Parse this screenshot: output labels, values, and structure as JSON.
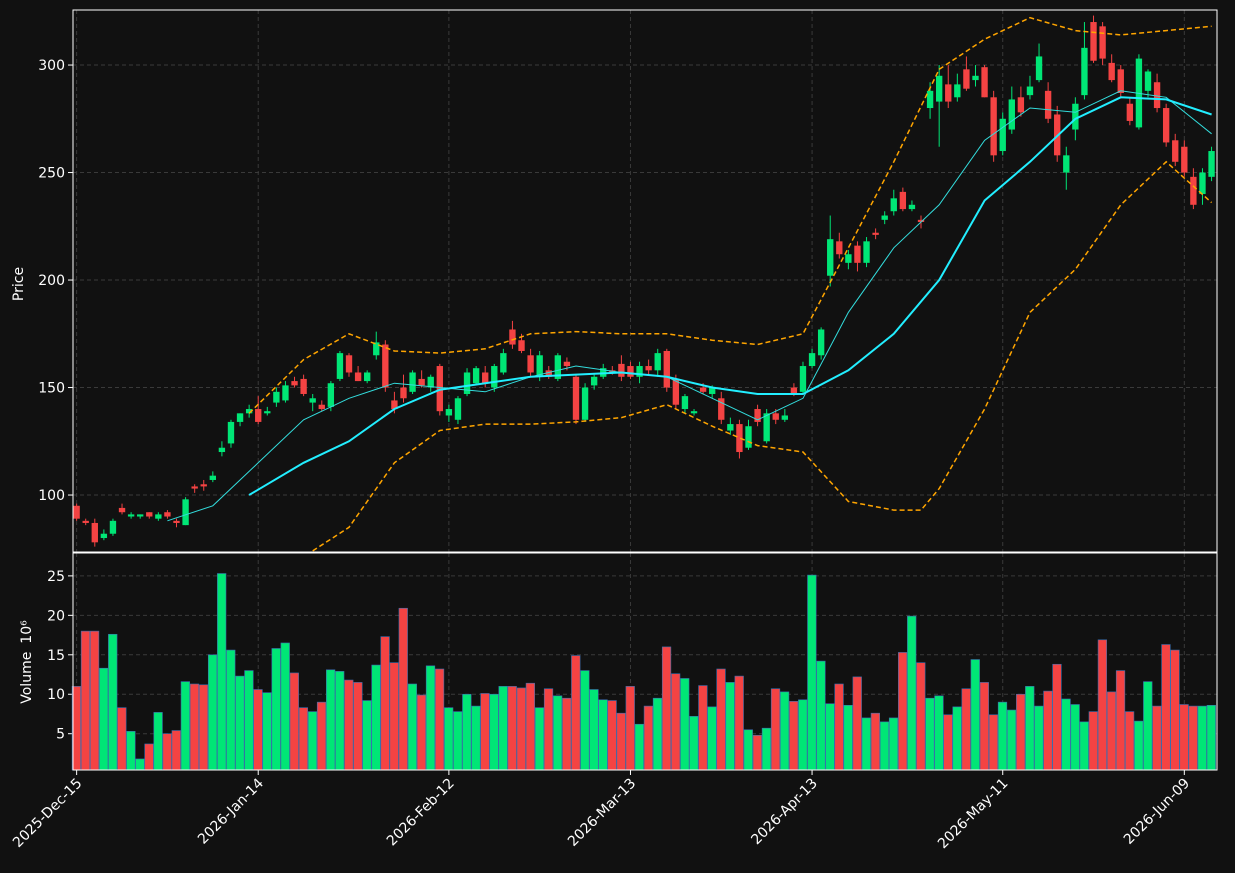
{
  "chart_data": {
    "type": "candlestick",
    "ylabel": "Price",
    "volume_ylabel": "Volume",
    "volume_unit": "10⁶",
    "up_color": "#00e676",
    "down_color": "#f44343",
    "grid": true,
    "ylim": [
      73.5,
      325.6
    ],
    "yticks": [
      100,
      150,
      200,
      250,
      300
    ],
    "volume_ylim": [
      0.4,
      27.9
    ],
    "volume_yticks": [
      5,
      10,
      15,
      20,
      25
    ],
    "xlim": [
      -0.4,
      125.6
    ],
    "xticks": [
      {
        "value": 0,
        "label": "2025-Dec-15"
      },
      {
        "value": 20,
        "label": "2026-Jan-14"
      },
      {
        "value": 41,
        "label": "2026-Feb-12"
      },
      {
        "value": 61,
        "label": "2026-Mar-13"
      },
      {
        "value": 81,
        "label": "2026-Apr-13"
      },
      {
        "value": 102,
        "label": "2026-May-11"
      },
      {
        "value": 122,
        "label": "2026-Jun-09"
      }
    ],
    "ohlc": [
      [
        95,
        96,
        88,
        89
      ],
      [
        88,
        89,
        86,
        87
      ],
      [
        87,
        89,
        76,
        78
      ],
      [
        80,
        84,
        79,
        82
      ],
      [
        82,
        89,
        81,
        88
      ],
      [
        94,
        96,
        91,
        92
      ],
      [
        90,
        92,
        89,
        91
      ],
      [
        90,
        91,
        89,
        91
      ],
      [
        92,
        92,
        89,
        90
      ],
      [
        89,
        92,
        88,
        91
      ],
      [
        92,
        93,
        89,
        90
      ],
      [
        88,
        89,
        85,
        87
      ],
      [
        86,
        99,
        86,
        98
      ],
      [
        104,
        105,
        101,
        103
      ],
      [
        105,
        107,
        102,
        104
      ],
      [
        107,
        111,
        106,
        109
      ],
      [
        120,
        125,
        118,
        122
      ],
      [
        124,
        135,
        122,
        134
      ],
      [
        134,
        138,
        132,
        138
      ],
      [
        138,
        142,
        136,
        140
      ],
      [
        140,
        146,
        133,
        134
      ],
      [
        138,
        141,
        137,
        139
      ],
      [
        143,
        150,
        141,
        148
      ],
      [
        144,
        153,
        143,
        151
      ],
      [
        153,
        155,
        150,
        151
      ],
      [
        154,
        156,
        146,
        147
      ],
      [
        143,
        147,
        139,
        145
      ],
      [
        142,
        144,
        139,
        140
      ],
      [
        141,
        153,
        139,
        152
      ],
      [
        154,
        167,
        153,
        166
      ],
      [
        165,
        166,
        155,
        157
      ],
      [
        157,
        160,
        153,
        153
      ],
      [
        153,
        158,
        152,
        157
      ],
      [
        165,
        176,
        163,
        171
      ],
      [
        170,
        172,
        148,
        150
      ],
      [
        144,
        148,
        138,
        140
      ],
      [
        150,
        156,
        143,
        145
      ],
      [
        148,
        158,
        147,
        157
      ],
      [
        154,
        158,
        150,
        151
      ],
      [
        150,
        156,
        148,
        155
      ],
      [
        160,
        161,
        137,
        139
      ],
      [
        137,
        142,
        134,
        140
      ],
      [
        135,
        146,
        133,
        145
      ],
      [
        147,
        159,
        146,
        157
      ],
      [
        152,
        160,
        151,
        159
      ],
      [
        157,
        160,
        150,
        152
      ],
      [
        150,
        161,
        148,
        160
      ],
      [
        157,
        168,
        156,
        166
      ],
      [
        177,
        181,
        168,
        170
      ],
      [
        172,
        175,
        166,
        167
      ],
      [
        165,
        168,
        155,
        157
      ],
      [
        155,
        167,
        153,
        165
      ],
      [
        158,
        160,
        154,
        155
      ],
      [
        154,
        166,
        153,
        165
      ],
      [
        162,
        164,
        158,
        160
      ],
      [
        155,
        156,
        133,
        135
      ],
      [
        135,
        152,
        134,
        150
      ],
      [
        151,
        156,
        149,
        155
      ],
      [
        155,
        161,
        154,
        159
      ],
      [
        158,
        160,
        156,
        157
      ],
      [
        161,
        165,
        153,
        155
      ],
      [
        160,
        162,
        154,
        155
      ],
      [
        155,
        162,
        152,
        160
      ],
      [
        160,
        163,
        156,
        158
      ],
      [
        158,
        168,
        155,
        166
      ],
      [
        167,
        168,
        148,
        150
      ],
      [
        154,
        156,
        140,
        142
      ],
      [
        140,
        147,
        138,
        146
      ],
      [
        138,
        140,
        137,
        139
      ],
      [
        150,
        152,
        147,
        148
      ],
      [
        147,
        151,
        145,
        150
      ],
      [
        145,
        148,
        133,
        135
      ],
      [
        130,
        136,
        128,
        133
      ],
      [
        133,
        135,
        117,
        120
      ],
      [
        122,
        135,
        121,
        132
      ],
      [
        140,
        142,
        132,
        134
      ],
      [
        125,
        140,
        124,
        138
      ],
      [
        138,
        140,
        133,
        135
      ],
      [
        135,
        140,
        134,
        137
      ],
      [
        150,
        152,
        146,
        147
      ],
      [
        148,
        162,
        147,
        160
      ],
      [
        160,
        168,
        159,
        166
      ],
      [
        165,
        178,
        163,
        177
      ],
      [
        202,
        230,
        197,
        219
      ],
      [
        218,
        222,
        210,
        212
      ],
      [
        208,
        214,
        205,
        212
      ],
      [
        216,
        218,
        204,
        208
      ],
      [
        208,
        220,
        206,
        218
      ],
      [
        222,
        224,
        219,
        221
      ],
      [
        228,
        232,
        226,
        230
      ],
      [
        232,
        242,
        230,
        238
      ],
      [
        241,
        243,
        232,
        233
      ],
      [
        233,
        237,
        232,
        235
      ],
      [
        228,
        230,
        224,
        227
      ],
      [
        280,
        292,
        275,
        288
      ],
      [
        283,
        300,
        262,
        295
      ],
      [
        291,
        300,
        280,
        283
      ],
      [
        285,
        296,
        283,
        291
      ],
      [
        298,
        304,
        288,
        289
      ],
      [
        293,
        300,
        290,
        295
      ],
      [
        299,
        300,
        285,
        285
      ],
      [
        285,
        288,
        255,
        258
      ],
      [
        260,
        278,
        258,
        275
      ],
      [
        270,
        290,
        268,
        284
      ],
      [
        285,
        290,
        276,
        278
      ],
      [
        286,
        295,
        284,
        290
      ],
      [
        293,
        310,
        292,
        304
      ],
      [
        288,
        292,
        273,
        275
      ],
      [
        277,
        281,
        255,
        258
      ],
      [
        250,
        262,
        242,
        258
      ],
      [
        270,
        285,
        265,
        282
      ],
      [
        286,
        320,
        284,
        308
      ],
      [
        320,
        323,
        301,
        302
      ],
      [
        318,
        320,
        300,
        303
      ],
      [
        301,
        305,
        292,
        293
      ],
      [
        298,
        300,
        285,
        287
      ],
      [
        282,
        285,
        272,
        274
      ],
      [
        271,
        305,
        270,
        303
      ],
      [
        288,
        298,
        285,
        297
      ],
      [
        292,
        296,
        278,
        280
      ],
      [
        280,
        282,
        262,
        264
      ],
      [
        265,
        268,
        253,
        255
      ],
      [
        262,
        265,
        248,
        250
      ],
      [
        248,
        252,
        233,
        235
      ],
      [
        240,
        252,
        235,
        250
      ],
      [
        248,
        262,
        246,
        260
      ]
    ],
    "volume": [
      11,
      18,
      18,
      13.3,
      17.6,
      8.3,
      5.3,
      1.8,
      3.7,
      7.7,
      5,
      5.4,
      11.6,
      11.3,
      11.2,
      15,
      25.3,
      15.6,
      12.3,
      13,
      10.6,
      10.2,
      15.8,
      16.5,
      12.7,
      8.3,
      7.8,
      9,
      13.1,
      12.9,
      11.8,
      11.5,
      9.2,
      13.7,
      17.3,
      14,
      20.9,
      11.3,
      9.9,
      13.6,
      13.2,
      8.3,
      7.8,
      10,
      8.5,
      10.1,
      10,
      11,
      11,
      10.8,
      11.4,
      8.3,
      10.7,
      9.8,
      9.5,
      14.9,
      13,
      10.6,
      9.3,
      9.2,
      7.6,
      11,
      6.2,
      8.5,
      9.5,
      16,
      12.6,
      12,
      7.2,
      11.1,
      8.4,
      13.2,
      11.5,
      12.3,
      5.5,
      4.8,
      5.7,
      10.7,
      10.3,
      9.1,
      9.3,
      25.1,
      14.2,
      8.8,
      11.3,
      8.6,
      12.2,
      7,
      7.6,
      6.5,
      7,
      15.3,
      19.9,
      14,
      9.5,
      9.8,
      7.4,
      8.4,
      10.7,
      14.4,
      11.5,
      7.4,
      9,
      8,
      10,
      11,
      8.5,
      10.4,
      13.8,
      9.4,
      8.7,
      6.5,
      7.8,
      16.9,
      10.3,
      13,
      7.8,
      6.6,
      11.6,
      8.5,
      16.3,
      15.6,
      8.7,
      8.5,
      8.5,
      8.6
    ],
    "lines": [
      {
        "color": "#33dddd",
        "width": 1,
        "style": "solid",
        "x": [
          10,
          15,
          20,
          25,
          30,
          35,
          40,
          45,
          50,
          55,
          60,
          65,
          70,
          75,
          80,
          85,
          90,
          95,
          100,
          105,
          110,
          115,
          120,
          125
        ],
        "values": [
          88,
          95,
          115,
          135,
          145,
          152,
          150,
          148,
          155,
          160,
          157,
          155,
          145,
          135,
          145,
          185,
          215,
          235,
          265,
          280,
          278,
          288,
          285,
          268
        ]
      },
      {
        "color": "#22eeff",
        "width": 2,
        "style": "solid",
        "x": [
          19,
          25,
          30,
          35,
          40,
          45,
          50,
          55,
          60,
          65,
          70,
          75,
          80,
          85,
          90,
          95,
          100,
          105,
          110,
          115,
          120,
          125
        ],
        "values": [
          100,
          115,
          125,
          140,
          149,
          152,
          155,
          156,
          157,
          155,
          150,
          147,
          147,
          158,
          175,
          200,
          237,
          255,
          275,
          285,
          284,
          277
        ]
      },
      {
        "color": "#ffa500",
        "width": 1.5,
        "style": "dashed",
        "x": [
          19,
          25,
          30,
          35,
          40,
          45,
          50,
          55,
          60,
          65,
          70,
          75,
          80,
          85,
          90,
          95,
          100,
          105,
          110,
          115,
          120,
          125
        ],
        "values": [
          138,
          163,
          175,
          167,
          166,
          168,
          175,
          176,
          175,
          175,
          172,
          170,
          175,
          215,
          255,
          298,
          312,
          322,
          316,
          314,
          316,
          318
        ]
      },
      {
        "color": "#ffa500",
        "width": 1.5,
        "style": "dashed",
        "x": [
          26,
          30,
          35,
          40,
          45,
          50,
          55,
          60,
          65,
          70,
          75,
          80,
          85,
          90,
          93,
          95,
          100,
          105,
          110,
          115,
          120,
          125
        ],
        "values": [
          74,
          85,
          115,
          130,
          133,
          133,
          134,
          136,
          142,
          132,
          123,
          120,
          97,
          93,
          93,
          103,
          140,
          185,
          205,
          235,
          255,
          236
        ]
      }
    ]
  }
}
